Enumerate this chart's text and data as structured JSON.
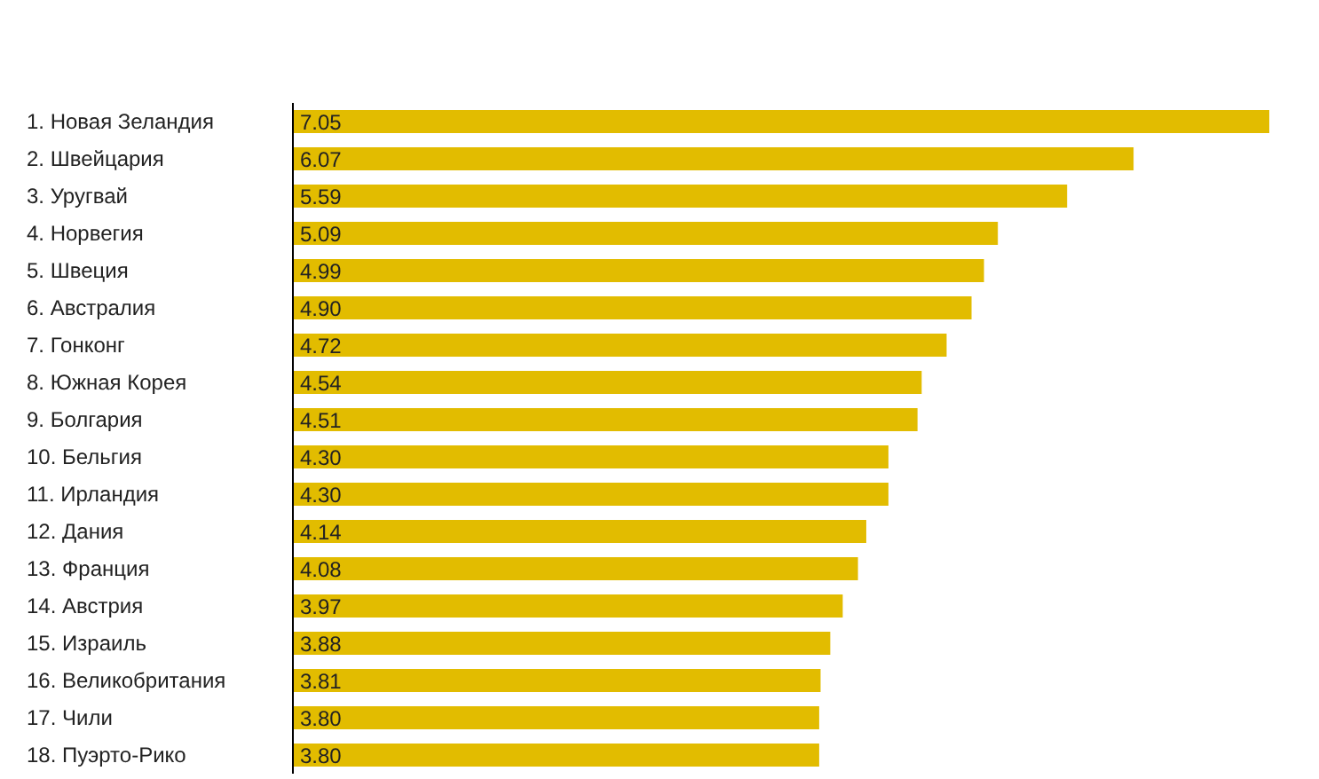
{
  "chart_data": {
    "type": "bar",
    "orientation": "horizontal",
    "data_labels": true,
    "color": "#e2bc00",
    "categories": [
      "1. Новая Зеландия",
      "2. Швейцария",
      "3. Уругвай",
      "4. Норвегия",
      "5. Швеция",
      "6. Австралия",
      "7. Гонконг",
      "8. Южная Корея",
      "9. Болгария",
      "10. Бельгия",
      "11. Ирландия",
      "12. Дания",
      "13. Франция",
      "14. Австрия",
      "15. Израиль",
      "16. Великобритания",
      "17. Чили",
      "18. Пуэрто-Рико"
    ],
    "values": [
      7.05,
      6.07,
      5.59,
      5.09,
      4.99,
      4.9,
      4.72,
      4.54,
      4.51,
      4.3,
      4.3,
      4.14,
      4.08,
      3.97,
      3.88,
      3.81,
      3.8,
      3.8
    ],
    "value_labels": [
      "7.05",
      "6.07",
      "5.59",
      "5.09",
      "4.99",
      "4.90",
      "4.72",
      "4.54",
      "4.51",
      "4.30",
      "4.30",
      "4.14",
      "4.08",
      "3.97",
      "3.88",
      "3.81",
      "3.80",
      "3.80"
    ]
  }
}
